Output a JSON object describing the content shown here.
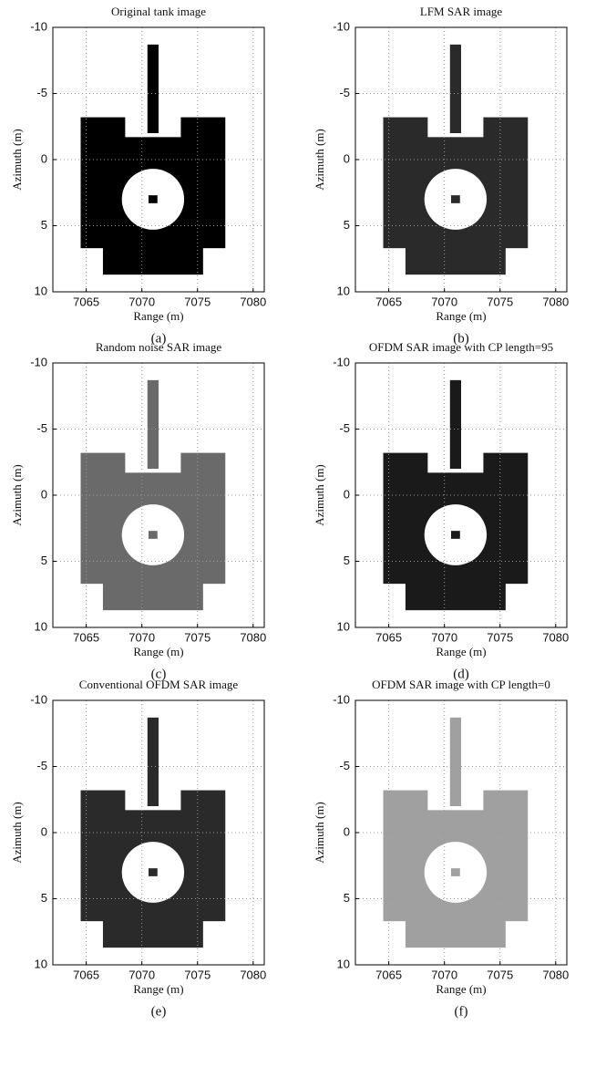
{
  "chart_data": [
    {
      "type": "image",
      "title": "Original tank image",
      "xlabel": "Range (m)",
      "ylabel": "Azimuth (m)",
      "caption": "(a)",
      "xlim": [
        7062,
        7081
      ],
      "ylim": [
        -10,
        10
      ],
      "xticks": [
        7065,
        7070,
        7075,
        7080
      ],
      "yticks": [
        -10,
        -5,
        0,
        5,
        10
      ],
      "y_inverted": true,
      "grid": true,
      "color": "#000000"
    },
    {
      "type": "image",
      "title": "LFM SAR image",
      "xlabel": "Range (m)",
      "ylabel": "Azimuth (m)",
      "caption": "(b)",
      "xlim": [
        7062,
        7081
      ],
      "ylim": [
        -10,
        10
      ],
      "xticks": [
        7065,
        7070,
        7075,
        7080
      ],
      "yticks": [
        -10,
        -5,
        0,
        5,
        10
      ],
      "y_inverted": true,
      "grid": true,
      "color": "#2a2a2a"
    },
    {
      "type": "image",
      "title": "Random noise SAR image",
      "xlabel": "Range (m)",
      "ylabel": "Azimuth (m)",
      "caption": "(c)",
      "xlim": [
        7062,
        7081
      ],
      "ylim": [
        -10,
        10
      ],
      "xticks": [
        7065,
        7070,
        7075,
        7080
      ],
      "yticks": [
        -10,
        -5,
        0,
        5,
        10
      ],
      "y_inverted": true,
      "grid": true,
      "color": "#6a6a6a"
    },
    {
      "type": "image",
      "title": "OFDM SAR image with CP length=95",
      "xlabel": "Range (m)",
      "ylabel": "Azimuth (m)",
      "caption": "(d)",
      "xlim": [
        7062,
        7081
      ],
      "ylim": [
        -10,
        10
      ],
      "xticks": [
        7065,
        7070,
        7075,
        7080
      ],
      "yticks": [
        -10,
        -5,
        0,
        5,
        10
      ],
      "y_inverted": true,
      "grid": true,
      "color": "#1a1a1a"
    },
    {
      "type": "image",
      "title": "Conventional OFDM SAR image",
      "xlabel": "Range (m)",
      "ylabel": "Azimuth (m)",
      "caption": "(e)",
      "xlim": [
        7062,
        7081
      ],
      "ylim": [
        -10,
        10
      ],
      "xticks": [
        7065,
        7070,
        7075,
        7080
      ],
      "yticks": [
        -10,
        -5,
        0,
        5,
        10
      ],
      "y_inverted": true,
      "grid": true,
      "color": "#2a2a2a"
    },
    {
      "type": "image",
      "title": "OFDM SAR image with CP length=0",
      "xlabel": "Range (m)",
      "ylabel": "Azimuth (m)",
      "caption": "(f)",
      "xlim": [
        7062,
        7081
      ],
      "ylim": [
        -10,
        10
      ],
      "xticks": [
        7065,
        7070,
        7075,
        7080
      ],
      "yticks": [
        -10,
        -5,
        0,
        5,
        10
      ],
      "y_inverted": true,
      "grid": true,
      "color": "#a0a0a0"
    }
  ]
}
